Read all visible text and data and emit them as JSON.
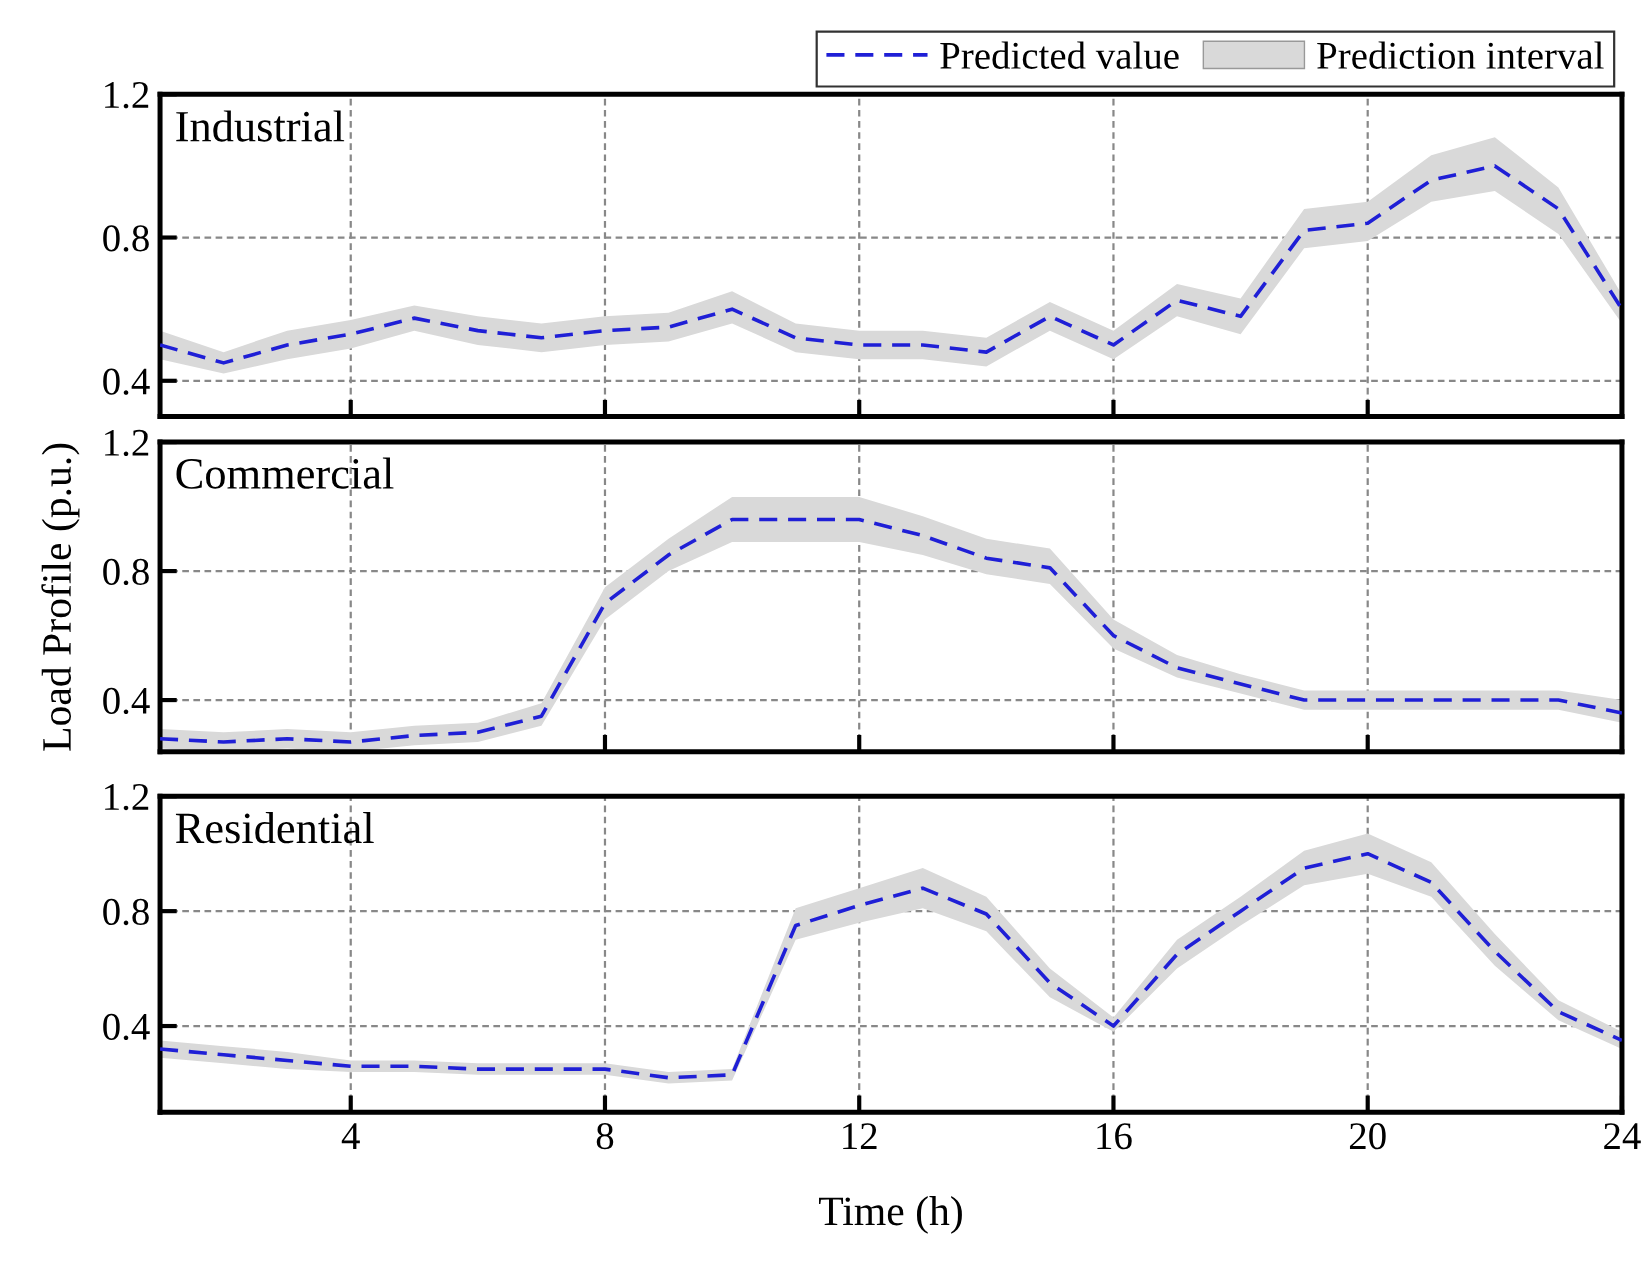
{
  "chart_data": [
    {
      "type": "line",
      "title": "Industrial",
      "x": [
        1,
        2,
        3,
        4,
        5,
        6,
        7,
        8,
        9,
        10,
        11,
        12,
        13,
        14,
        15,
        16,
        17,
        18,
        19,
        20,
        21,
        22,
        23,
        24
      ],
      "series": [
        {
          "name": "Predicted value",
          "color": "#1f1fd6",
          "values": [
            0.5,
            0.45,
            0.5,
            0.53,
            0.575,
            0.54,
            0.52,
            0.54,
            0.55,
            0.6,
            0.52,
            0.5,
            0.5,
            0.48,
            0.58,
            0.5,
            0.625,
            0.58,
            0.82,
            0.84,
            0.96,
            1.0,
            0.88,
            0.6
          ]
        },
        {
          "type": "area",
          "name": "Prediction interval",
          "color": "#d9d9d9",
          "values": [
            null,
            null,
            null,
            null,
            null,
            null,
            null,
            null,
            null,
            null,
            null,
            null,
            null,
            null,
            null,
            null,
            null,
            null,
            null,
            null,
            null,
            null,
            null,
            null
          ],
          "lower": [
            0.46,
            0.42,
            0.46,
            0.49,
            0.54,
            0.5,
            0.48,
            0.5,
            0.51,
            0.56,
            0.48,
            0.46,
            0.46,
            0.44,
            0.54,
            0.46,
            0.58,
            0.53,
            0.77,
            0.79,
            0.9,
            0.93,
            0.81,
            0.56
          ],
          "upper": [
            0.54,
            0.48,
            0.54,
            0.57,
            0.61,
            0.58,
            0.56,
            0.58,
            0.59,
            0.65,
            0.56,
            0.54,
            0.54,
            0.52,
            0.62,
            0.54,
            0.67,
            0.63,
            0.88,
            0.9,
            1.03,
            1.08,
            0.94,
            0.64
          ]
        }
      ],
      "xlim": [
        1,
        24
      ],
      "xticks": [
        4,
        8,
        12,
        16,
        20,
        24
      ],
      "ylim": [
        0.3,
        1.2
      ],
      "yticks": [
        0.4,
        0.8,
        1.2
      ],
      "grid": true,
      "legend": "top right",
      "marker": "none",
      "line_style": "dashed",
      "tick_labels": "y"
    },
    {
      "type": "line",
      "title": "Commercial",
      "ylabel": "Load Profile (p.u.)",
      "x": [
        1,
        2,
        3,
        4,
        5,
        6,
        7,
        8,
        9,
        10,
        11,
        12,
        13,
        14,
        15,
        16,
        17,
        18,
        19,
        20,
        21,
        22,
        23,
        24
      ],
      "series": [
        {
          "color": "#1f1fd6",
          "values": [
            0.28,
            0.27,
            0.28,
            0.27,
            0.29,
            0.3,
            0.35,
            0.7,
            0.85,
            0.96,
            0.96,
            0.96,
            0.91,
            0.84,
            0.81,
            0.6,
            0.5,
            0.45,
            0.4,
            0.4,
            0.4,
            0.4,
            0.4,
            0.36
          ]
        },
        {
          "type": "area",
          "color": "#d9d9d9",
          "values": [
            null,
            null,
            null,
            null,
            null,
            null,
            null,
            null,
            null,
            null,
            null,
            null,
            null,
            null,
            null,
            null,
            null,
            null,
            null,
            null,
            null,
            null,
            null,
            null
          ],
          "lower": [
            0.25,
            0.24,
            0.25,
            0.24,
            0.26,
            0.27,
            0.32,
            0.65,
            0.8,
            0.89,
            0.89,
            0.89,
            0.85,
            0.79,
            0.76,
            0.56,
            0.47,
            0.42,
            0.37,
            0.37,
            0.37,
            0.37,
            0.37,
            0.33
          ],
          "upper": [
            0.31,
            0.3,
            0.31,
            0.3,
            0.32,
            0.33,
            0.39,
            0.75,
            0.9,
            1.03,
            1.03,
            1.03,
            0.97,
            0.9,
            0.87,
            0.65,
            0.54,
            0.48,
            0.43,
            0.43,
            0.43,
            0.43,
            0.43,
            0.4
          ]
        }
      ],
      "xlim": [
        1,
        24
      ],
      "xticks": [
        4,
        8,
        12,
        16,
        20,
        24
      ],
      "ylim": [
        0.24,
        1.2
      ],
      "yticks": [
        0.4,
        0.8,
        1.2
      ],
      "grid": true,
      "marker": "none",
      "line_style": "dashed",
      "tick_labels": "y"
    },
    {
      "type": "line",
      "title": "Residential",
      "xlabel": "Time (h)",
      "x": [
        1,
        2,
        3,
        4,
        5,
        6,
        7,
        8,
        9,
        10,
        11,
        12,
        13,
        14,
        15,
        16,
        17,
        18,
        19,
        20,
        21,
        22,
        23,
        24
      ],
      "series": [
        {
          "color": "#1f1fd6",
          "values": [
            0.32,
            0.3,
            0.28,
            0.26,
            0.26,
            0.25,
            0.25,
            0.25,
            0.22,
            0.23,
            0.75,
            0.82,
            0.88,
            0.79,
            0.55,
            0.4,
            0.65,
            0.8,
            0.95,
            1.0,
            0.9,
            0.66,
            0.45,
            0.35
          ]
        },
        {
          "type": "area",
          "color": "#d9d9d9",
          "values": [
            null,
            null,
            null,
            null,
            null,
            null,
            null,
            null,
            null,
            null,
            null,
            null,
            null,
            null,
            null,
            null,
            null,
            null,
            null,
            null,
            null,
            null,
            null,
            null
          ],
          "lower": [
            0.29,
            0.27,
            0.25,
            0.24,
            0.24,
            0.23,
            0.23,
            0.23,
            0.2,
            0.21,
            0.7,
            0.76,
            0.81,
            0.73,
            0.5,
            0.38,
            0.6,
            0.75,
            0.89,
            0.93,
            0.85,
            0.61,
            0.42,
            0.32
          ],
          "upper": [
            0.35,
            0.33,
            0.31,
            0.28,
            0.28,
            0.27,
            0.27,
            0.27,
            0.24,
            0.25,
            0.81,
            0.88,
            0.95,
            0.85,
            0.6,
            0.43,
            0.7,
            0.85,
            1.01,
            1.07,
            0.97,
            0.72,
            0.49,
            0.38
          ]
        }
      ],
      "xlim": [
        1,
        24
      ],
      "xticks": [
        4,
        8,
        12,
        16,
        20,
        24
      ],
      "ylim": [
        0.1,
        1.2
      ],
      "yticks": [
        0.4,
        0.8,
        1.2
      ],
      "grid": true,
      "marker": "none",
      "line_style": "dashed"
    }
  ]
}
